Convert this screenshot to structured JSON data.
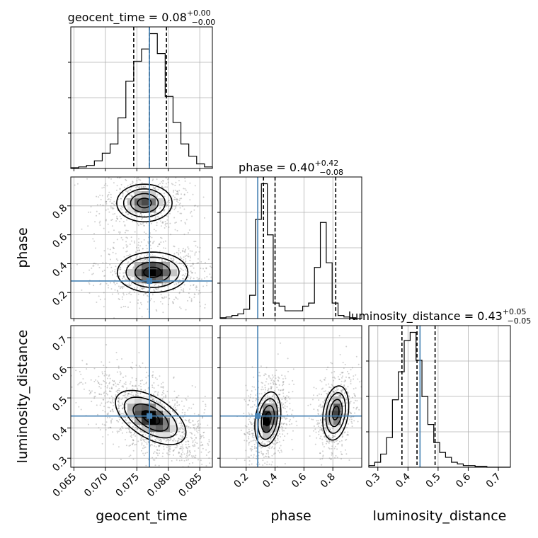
{
  "chart_data": {
    "type": "corner",
    "parameters": [
      {
        "key": "geocent_time",
        "label": "geocent_time",
        "range": [
          0.0645,
          0.087
        ],
        "ticks": [
          "0.065",
          "0.070",
          "0.075",
          "0.080",
          "0.085"
        ],
        "tick_values": [
          0.065,
          0.07,
          0.075,
          0.08,
          0.085
        ],
        "title_value": "0.08",
        "title_plus": "+0.00",
        "title_minus": "−0.00",
        "quantiles": [
          0.0745,
          0.077,
          0.0797
        ],
        "truth": 0.077,
        "hist_edges_start": 0.0645,
        "hist_bin_width": 0.00125,
        "hist_counts": [
          0.5,
          1,
          2,
          5,
          10,
          16,
          33,
          57,
          70,
          78,
          88,
          75,
          47,
          30,
          16,
          8,
          3,
          1
        ]
      },
      {
        "key": "phase",
        "label": "phase",
        "range": [
          0.02,
          1.0
        ],
        "ticks": [
          "0.2",
          "0.4",
          "0.6",
          "0.8"
        ],
        "tick_values": [
          0.2,
          0.4,
          0.6,
          0.8
        ],
        "title_value": "0.40",
        "title_plus": "+0.42",
        "title_minus": "−0.08",
        "quantiles": [
          0.32,
          0.4,
          0.82
        ],
        "truth": 0.28,
        "hist_edges_start": 0.02,
        "hist_bin_width": 0.0408,
        "hist_counts": [
          0.5,
          1,
          2,
          3,
          6,
          15,
          64,
          87,
          54,
          10,
          8,
          5,
          5,
          5,
          8,
          10,
          33,
          62,
          36,
          10,
          2,
          1,
          0.5,
          0
        ]
      },
      {
        "key": "luminosity_distance",
        "label": "luminosity_distance",
        "range": [
          0.27,
          0.74
        ],
        "ticks": [
          "0.3",
          "0.4",
          "0.5",
          "0.6",
          "0.7"
        ],
        "tick_values": [
          0.3,
          0.4,
          0.5,
          0.6,
          0.7
        ],
        "title_value": "0.43",
        "title_plus": "+0.05",
        "title_minus": "−0.05",
        "quantiles": [
          0.38,
          0.43,
          0.49
        ],
        "truth": 0.44,
        "hist_edges_start": 0.27,
        "hist_bin_width": 0.0196,
        "hist_counts": [
          1,
          3,
          8,
          18,
          41,
          58,
          77,
          82,
          65,
          43,
          26,
          15,
          9,
          6,
          3,
          2,
          1,
          1,
          0.5,
          0.5,
          0,
          0,
          0,
          0
        ]
      }
    ],
    "blobs": {
      "1,0": [
        {
          "cx": 0.0762,
          "cy": 0.82,
          "sx": 0.0022,
          "sy": 0.065,
          "rho": 0.0,
          "w": 0.45
        },
        {
          "cx": 0.0775,
          "cy": 0.34,
          "sx": 0.0028,
          "sy": 0.07,
          "rho": 0.0,
          "w": 0.55
        }
      ],
      "2,0": [
        {
          "cx": 0.0772,
          "cy": 0.435,
          "sx": 0.0028,
          "sy": 0.045,
          "rho": -0.55,
          "w": 1.0
        }
      ],
      "2,1": [
        {
          "cx": 0.35,
          "cy": 0.43,
          "sx": 0.045,
          "sy": 0.045,
          "rho": 0.25,
          "w": 0.55
        },
        {
          "cx": 0.82,
          "cy": 0.45,
          "sx": 0.045,
          "sy": 0.045,
          "rho": 0.25,
          "w": 0.45
        }
      ]
    },
    "levels": [
      0.118,
      0.393,
      0.675,
      0.865
    ],
    "truth_color": "#4682b4",
    "line_color": "#000000",
    "grid_color": "#b0b0b0"
  }
}
